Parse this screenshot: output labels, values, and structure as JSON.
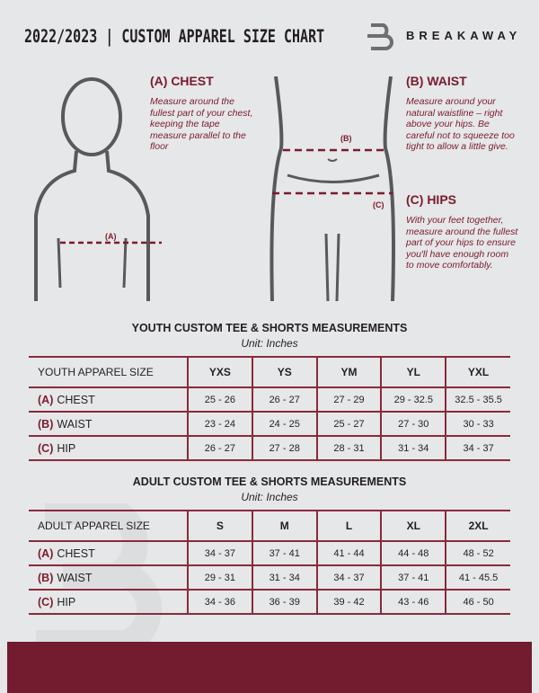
{
  "header": {
    "title": "2022/2023 | CUSTOM APPAREL SIZE CHART",
    "brand": "BREAKAWAY"
  },
  "measures": {
    "chest": {
      "heading": "(A) CHEST",
      "desc": "Measure around the fullest part of your chest, keeping the tape measure parallel to the floor",
      "marker": "(A)"
    },
    "waist": {
      "heading": "(B) WAIST",
      "desc": "Measure around your natural waistline – right above your hips. Be careful not to squeeze too tight to allow a little give.",
      "marker": "(B)"
    },
    "hips": {
      "heading": "(C) HIPS",
      "desc": "With your feet together, measure around the fullest part of your hips to ensure you'll have enough room to move comfortably.",
      "marker": "(C)"
    }
  },
  "youth": {
    "title": "YOUTH CUSTOM TEE & SHORTS MEASUREMENTS",
    "unit": "Unit: Inches",
    "header": [
      "YOUTH APPAREL SIZE",
      "YXS",
      "YS",
      "YM",
      "YL",
      "YXL"
    ],
    "rows": [
      {
        "code": "(A)",
        "label": "CHEST",
        "values": [
          "25 - 26",
          "26 - 27",
          "27 - 29",
          "29 - 32.5",
          "32.5 - 35.5"
        ]
      },
      {
        "code": "(B)",
        "label": "WAIST",
        "values": [
          "23 - 24",
          "24 - 25",
          "25 - 27",
          "27 - 30",
          "30 - 33"
        ]
      },
      {
        "code": "(C)",
        "label": "HIP",
        "values": [
          "26 - 27",
          "27 - 28",
          "28 - 31",
          "31 - 34",
          "34 - 37"
        ]
      }
    ]
  },
  "adult": {
    "title": "ADULT CUSTOM TEE & SHORTS MEASUREMENTS",
    "unit": "Unit: Inches",
    "header": [
      "ADULT APPAREL SIZE",
      "S",
      "M",
      "L",
      "XL",
      "2XL"
    ],
    "rows": [
      {
        "code": "(A)",
        "label": "CHEST",
        "values": [
          "34 - 37",
          "37 - 41",
          "41 - 44",
          "44 - 48",
          "48 - 52"
        ]
      },
      {
        "code": "(B)",
        "label": "WAIST",
        "values": [
          "29 - 31",
          "31 - 34",
          "34 - 37",
          "37 - 41",
          "41 - 45.5"
        ]
      },
      {
        "code": "(C)",
        "label": "HIP",
        "values": [
          "34 - 36",
          "36 - 39",
          "39 - 42",
          "43 - 46",
          "46 - 50"
        ]
      }
    ]
  },
  "colors": {
    "accent": "#731b2f",
    "background": "#e6e7e8"
  }
}
